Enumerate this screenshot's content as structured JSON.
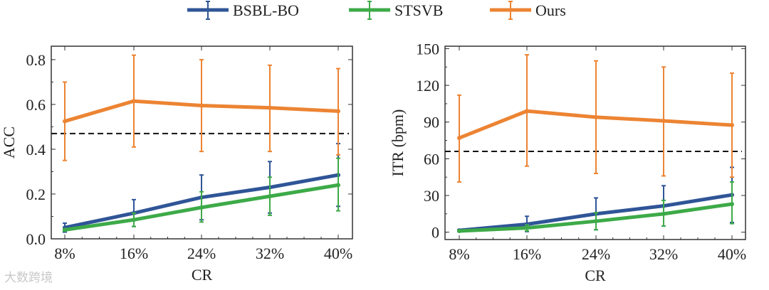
{
  "legend": [
    {
      "name": "BSBL-BO",
      "color": "#2f5597"
    },
    {
      "name": "STSVB",
      "color": "#3daa48"
    },
    {
      "name": "Ours",
      "color": "#ec8433"
    }
  ],
  "watermark": "大数跨境",
  "chart_data": [
    {
      "type": "line",
      "title": "",
      "xlabel": "CR",
      "ylabel": "ACC",
      "categories": [
        "8%",
        "16%",
        "24%",
        "32%",
        "40%"
      ],
      "ylim": [
        0,
        0.86
      ],
      "yticks": [
        0.0,
        0.2,
        0.4,
        0.6,
        0.8
      ],
      "ytick_labels": [
        "0.0",
        "0.2",
        "0.4",
        "0.6",
        "0.8"
      ],
      "reference_line": 0.47,
      "series": [
        {
          "name": "BSBL-BO",
          "values": [
            0.05,
            0.115,
            0.185,
            0.23,
            0.285
          ],
          "err_low": [
            0.03,
            0.055,
            0.085,
            0.115,
            0.145
          ],
          "err_high": [
            0.07,
            0.175,
            0.285,
            0.345,
            0.425
          ]
        },
        {
          "name": "STSVB",
          "values": [
            0.04,
            0.085,
            0.14,
            0.19,
            0.24
          ],
          "err_low": [
            0.035,
            0.055,
            0.075,
            0.105,
            0.125
          ],
          "err_high": [
            0.045,
            0.115,
            0.21,
            0.275,
            0.36
          ]
        },
        {
          "name": "Ours",
          "values": [
            0.525,
            0.615,
            0.595,
            0.585,
            0.57
          ],
          "err_low": [
            0.35,
            0.41,
            0.39,
            0.39,
            0.375
          ],
          "err_high": [
            0.7,
            0.82,
            0.8,
            0.775,
            0.76
          ]
        }
      ]
    },
    {
      "type": "line",
      "title": "",
      "xlabel": "CR",
      "ylabel": "ITR (bpm)",
      "categories": [
        "8%",
        "16%",
        "24%",
        "32%",
        "40%"
      ],
      "ylim": [
        -6,
        152
      ],
      "yticks": [
        0,
        30,
        60,
        90,
        120,
        150
      ],
      "ytick_labels": [
        "0",
        "30",
        "60",
        "90",
        "120",
        "150"
      ],
      "reference_line": 66,
      "series": [
        {
          "name": "BSBL-BO",
          "values": [
            1.5,
            6.5,
            15,
            21.5,
            30.5
          ],
          "err_low": [
            1,
            0.5,
            2,
            5,
            8
          ],
          "err_high": [
            2,
            13,
            28,
            38,
            53
          ]
        },
        {
          "name": "STSVB",
          "values": [
            1,
            3.5,
            9,
            15,
            23
          ],
          "err_low": [
            0.5,
            1,
            2,
            5,
            7
          ],
          "err_high": [
            1.5,
            6,
            16,
            26,
            41
          ]
        },
        {
          "name": "Ours",
          "values": [
            77,
            99,
            94,
            91,
            87.5
          ],
          "err_low": [
            41,
            54,
            48,
            46,
            45
          ],
          "err_high": [
            112,
            145,
            140,
            135,
            130
          ]
        }
      ]
    }
  ]
}
